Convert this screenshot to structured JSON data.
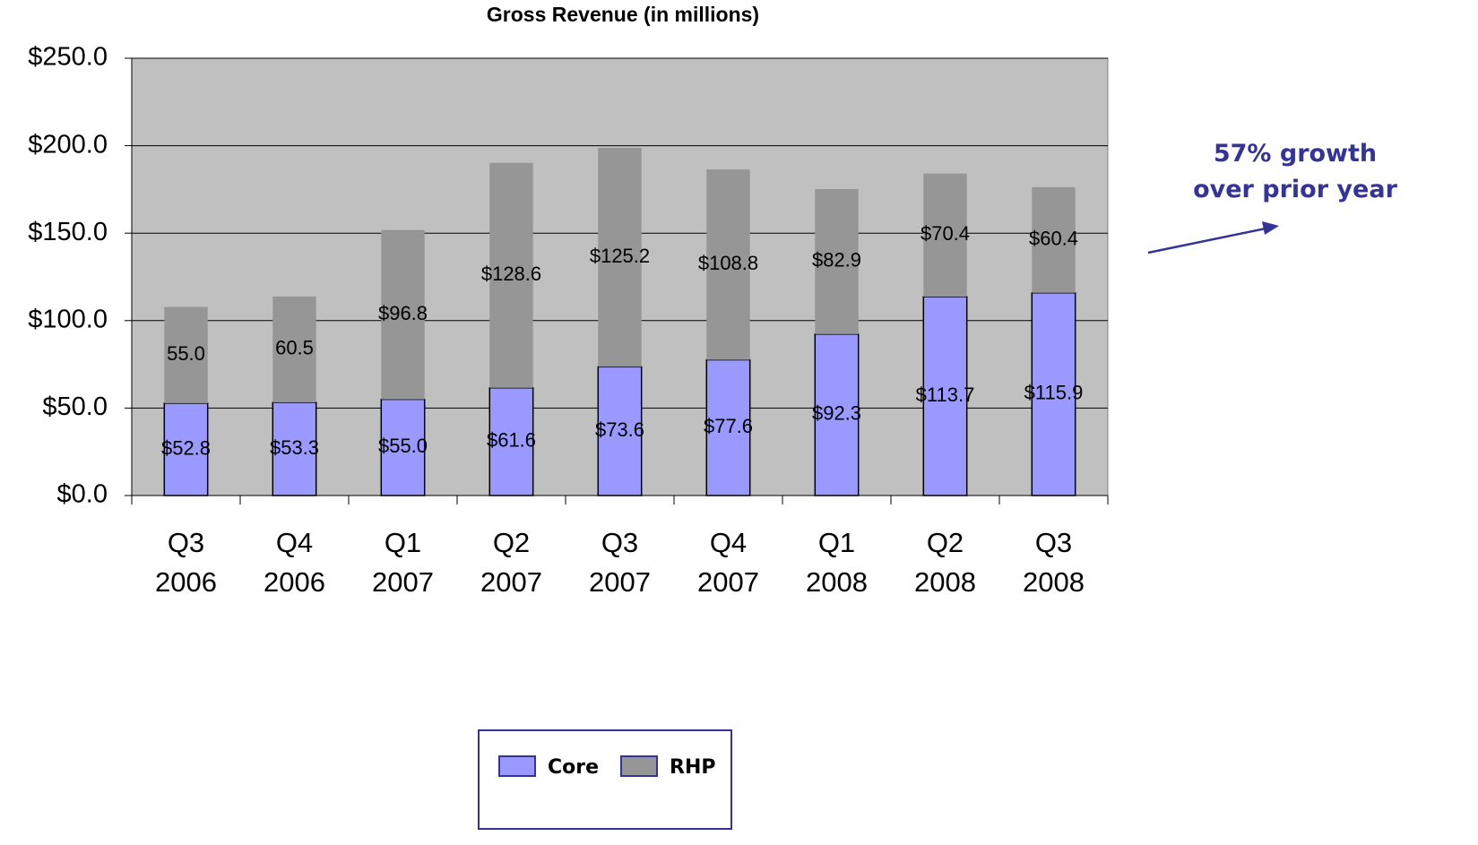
{
  "chart_data": {
    "type": "bar",
    "stacked": true,
    "title": "Gross Revenue (in millions)",
    "annotation": "57% growth over prior year",
    "categories": [
      "Q3 2006",
      "Q4 2006",
      "Q1 2007",
      "Q2 2007",
      "Q3 2007",
      "Q4 2007",
      "Q1 2008",
      "Q2 2008",
      "Q3 2008"
    ],
    "series": [
      {
        "name": "Core",
        "color": "#9999ff",
        "values": [
          52.8,
          53.3,
          55.0,
          61.6,
          73.6,
          77.6,
          92.3,
          113.7,
          115.9
        ],
        "value_labels": [
          "$52.8",
          "$53.3",
          "$55.0",
          "$61.6",
          "$73.6",
          "$77.6",
          "$92.3",
          "$113.7",
          "$115.9"
        ]
      },
      {
        "name": "RHP",
        "color": "#969696",
        "values": [
          55.0,
          60.5,
          96.8,
          128.6,
          125.2,
          108.8,
          82.9,
          70.4,
          60.4
        ],
        "value_labels": [
          "55.0",
          "60.5",
          "$96.8",
          "$128.6",
          "$125.2",
          "$108.8",
          "$82.9",
          "$70.4",
          "$60.4"
        ]
      }
    ],
    "ylim": [
      0,
      250
    ],
    "yticks": [
      {
        "value": 0,
        "label": "$0.0"
      },
      {
        "value": 50,
        "label": "$50.0"
      },
      {
        "value": 100,
        "label": "$100.0"
      },
      {
        "value": 150,
        "label": "$150.0"
      },
      {
        "value": 200,
        "label": "$200.0"
      },
      {
        "value": 250,
        "label": "$250.0"
      }
    ],
    "grid": true,
    "plot_background": "#c0c0c0",
    "legend": "bottom"
  }
}
